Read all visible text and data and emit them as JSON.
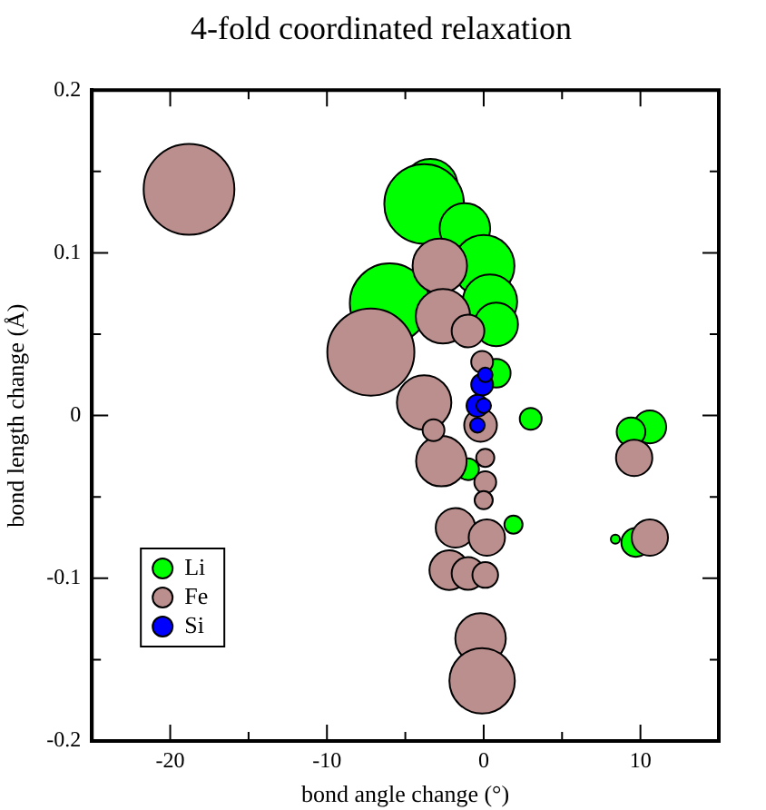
{
  "chart_data": {
    "type": "bubble",
    "title": "4-fold coordinated relaxation",
    "xlabel": "bond angle change (°)",
    "ylabel": "bond length change (Å)",
    "xlim": [
      -25,
      15
    ],
    "xticks": [
      -20,
      {
        "value": -15,
        "label": null
      },
      -10,
      {
        "value": -5,
        "label": null
      },
      0,
      {
        "value": 5,
        "label": null
      },
      10
    ],
    "ylim": [
      -0.2,
      0.2
    ],
    "yticks": [
      -0.2,
      {
        "value": -0.15,
        "label": null
      },
      -0.1,
      {
        "value": -0.05,
        "label": null
      },
      0,
      {
        "value": 0.05,
        "label": null
      },
      0.1,
      {
        "value": 0.15,
        "label": null
      },
      0.2
    ],
    "grid": false,
    "legend": "bottom left",
    "series": [
      {
        "name": "Li",
        "color": "#00ff00",
        "x": [
          -3.4,
          -3.8,
          -6.0,
          -1.2,
          0,
          0.4,
          0.8,
          0.8,
          3.0,
          1.9,
          8.4,
          9.7,
          10.6,
          9.4,
          -1.0
        ],
        "values": [
          0.141,
          0.13,
          0.069,
          0.115,
          0.092,
          0.07,
          0.056,
          0.026,
          -0.002,
          -0.067,
          -0.076,
          -0.078,
          -0.007,
          -0.01,
          -0.033
        ],
        "sizes": [
          0.36,
          0.77,
          0.77,
          0.31,
          0.46,
          0.36,
          0.23,
          0.1,
          0.058,
          0.04,
          0.01,
          0.1,
          0.13,
          0.1,
          0.058
        ]
      },
      {
        "name": "Fe",
        "color": "#bc8f8f",
        "x": [
          -18.8,
          -7.2,
          -2.8,
          -2.6,
          -1.0,
          -3.8,
          -2.7,
          -3.2,
          -0.2,
          -0.1,
          0.1,
          0.1,
          0,
          -1.8,
          0.2,
          -2.2,
          -1.0,
          0.1,
          -0.2,
          -0.1,
          9.6,
          10.6
        ],
        "values": [
          0.139,
          0.039,
          0.092,
          0.061,
          0.052,
          0.008,
          -0.028,
          -0.009,
          -0.006,
          0.033,
          -0.026,
          -0.041,
          -0.052,
          -0.069,
          -0.075,
          -0.095,
          -0.097,
          -0.098,
          -0.137,
          -0.163,
          -0.026,
          -0.075
        ],
        "sizes": [
          1,
          0.92,
          0.36,
          0.36,
          0.13,
          0.36,
          0.31,
          0.058,
          0.13,
          0.058,
          0.04,
          0.058,
          0.04,
          0.19,
          0.16,
          0.19,
          0.13,
          0.08,
          0.31,
          0.52,
          0.16,
          0.16
        ]
      },
      {
        "name": "Si",
        "color": "#0000ff",
        "x": [
          -0.1,
          -0.4,
          0,
          -0.4,
          0.1
        ],
        "values": [
          0.019,
          0.006,
          0.006,
          -0.006,
          0.025
        ],
        "sizes": [
          0.058,
          0.058,
          0.026,
          0.026,
          0.026
        ]
      }
    ]
  }
}
